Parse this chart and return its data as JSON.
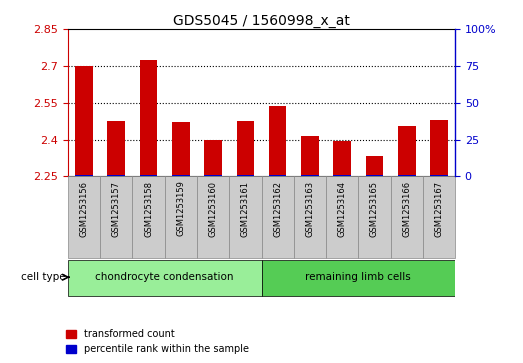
{
  "title": "GDS5045 / 1560998_x_at",
  "samples": [
    "GSM1253156",
    "GSM1253157",
    "GSM1253158",
    "GSM1253159",
    "GSM1253160",
    "GSM1253161",
    "GSM1253162",
    "GSM1253163",
    "GSM1253164",
    "GSM1253165",
    "GSM1253166",
    "GSM1253167"
  ],
  "transformed_counts": [
    2.7,
    2.475,
    2.725,
    2.47,
    2.4,
    2.475,
    2.535,
    2.415,
    2.395,
    2.335,
    2.455,
    2.48
  ],
  "percentile_ranks": [
    2,
    2,
    2,
    2,
    2,
    2,
    2,
    2,
    2,
    2,
    2,
    2
  ],
  "ylim_left": [
    2.25,
    2.85
  ],
  "yticks_left": [
    2.25,
    2.4,
    2.55,
    2.7,
    2.85
  ],
  "yticks_right": [
    0,
    25,
    50,
    75,
    100
  ],
  "ylim_right": [
    0,
    100
  ],
  "bar_color_red": "#cc0000",
  "bar_color_blue": "#0000cc",
  "bar_width": 0.55,
  "cell_type_label": "cell type",
  "group1_label": "chondrocyte condensation",
  "group2_label": "remaining limb cells",
  "group1_indices": [
    0,
    1,
    2,
    3,
    4,
    5
  ],
  "group2_indices": [
    6,
    7,
    8,
    9,
    10,
    11
  ],
  "group1_color": "#99ee99",
  "group2_color": "#55cc55",
  "legend_red_label": "transformed count",
  "legend_blue_label": "percentile rank within the sample",
  "grid_linestyle": "dotted",
  "sample_box_color": "#cccccc",
  "sample_box_edge": "#888888",
  "axis_bg_color": "#ffffff"
}
